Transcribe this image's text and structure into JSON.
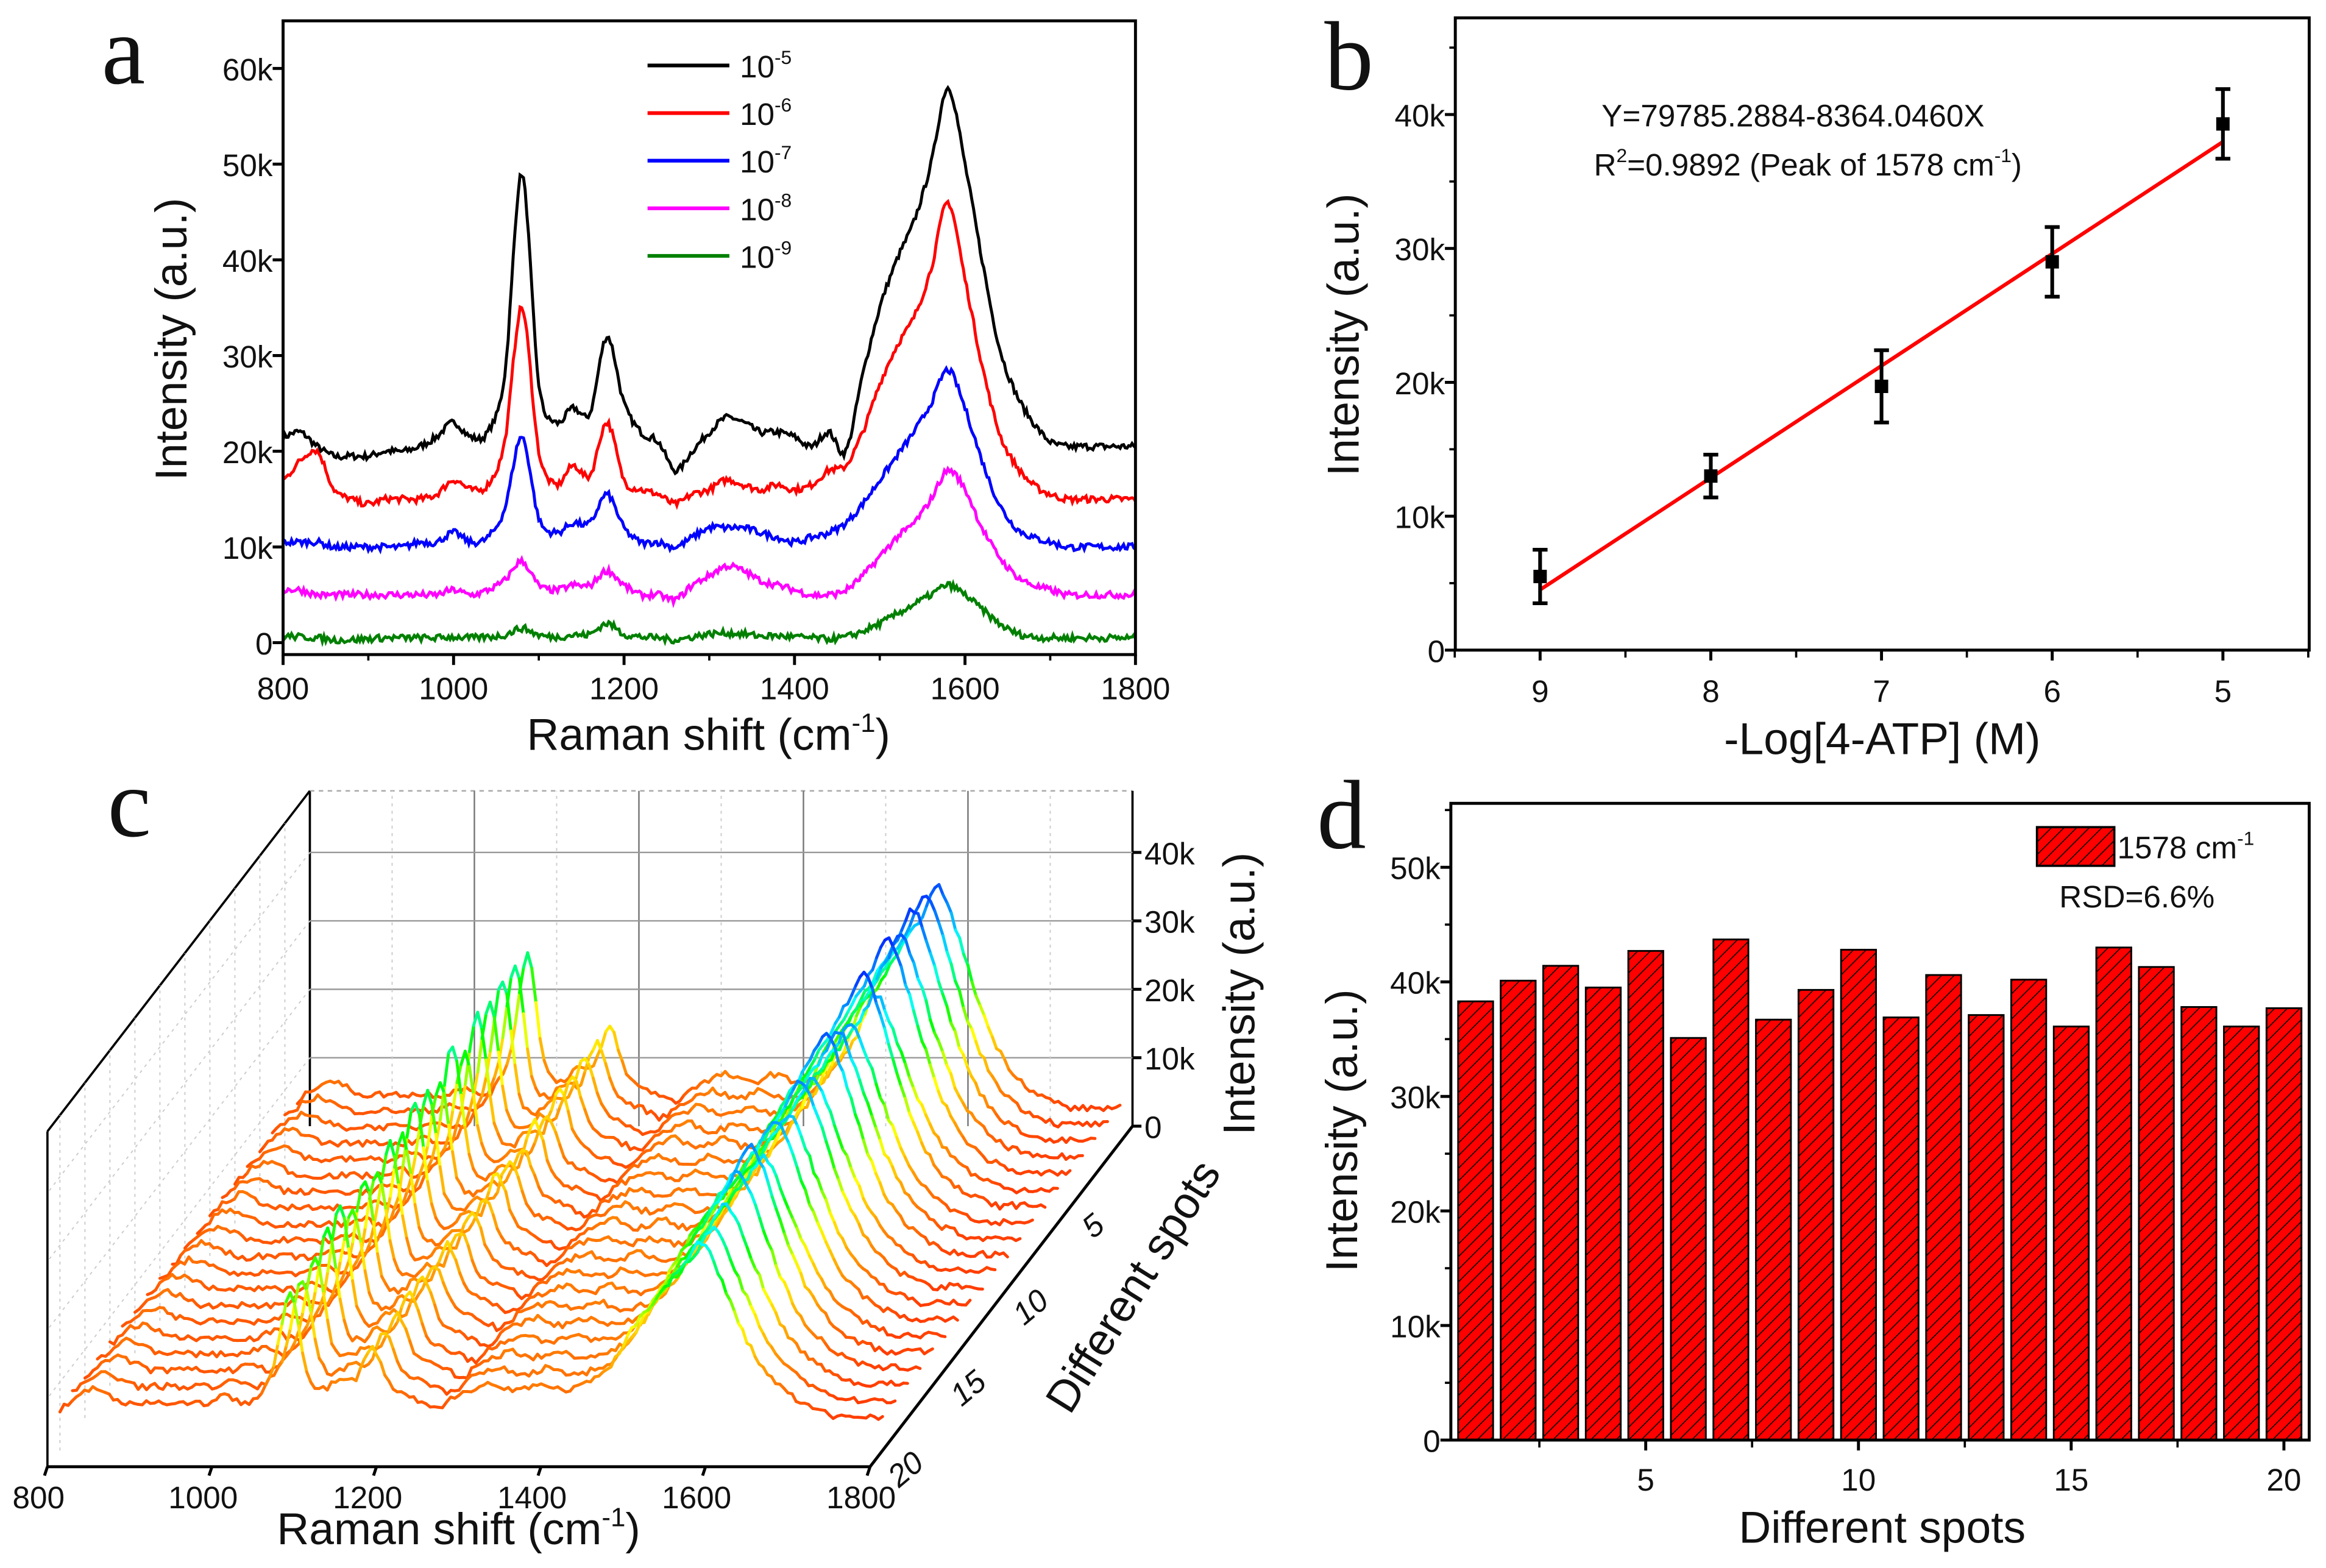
{
  "panels": {
    "a": "a",
    "b": "b",
    "c": "c",
    "d": "d"
  },
  "chart_data": [
    {
      "panel": "a",
      "type": "line",
      "xlabel": "Raman shift (cm",
      "xlabel_sup": "-1",
      "xlabel_end": ")",
      "ylabel": "Intensity (a.u.)",
      "xlim": [
        800,
        1800
      ],
      "ylim": [
        -1000,
        65000
      ],
      "xticks": [
        "800",
        "1000",
        "1200",
        "1400",
        "1600",
        "1800"
      ],
      "yticks": [
        "0",
        "10k",
        "20k",
        "30k",
        "40k",
        "50k",
        "60k"
      ],
      "legend_position": "top-center",
      "x": [
        800,
        820,
        840,
        860,
        880,
        900,
        920,
        940,
        960,
        980,
        1000,
        1020,
        1040,
        1060,
        1080,
        1100,
        1120,
        1140,
        1160,
        1180,
        1200,
        1220,
        1240,
        1260,
        1280,
        1300,
        1320,
        1340,
        1360,
        1380,
        1400,
        1420,
        1440,
        1460,
        1480,
        1500,
        1520,
        1540,
        1560,
        1580,
        1600,
        1620,
        1640,
        1660,
        1680,
        1700,
        1720,
        1740,
        1760,
        1780,
        1800
      ],
      "series": [
        {
          "name_base": "10",
          "name_exp": "-5",
          "color": "#000000",
          "values": [
            21500,
            22000,
            20500,
            19500,
            19500,
            19500,
            20000,
            20000,
            20500,
            21500,
            23000,
            21500,
            22000,
            28000,
            49000,
            27000,
            23000,
            24500,
            24000,
            32000,
            25000,
            22000,
            21000,
            18000,
            20000,
            22000,
            23500,
            23000,
            22000,
            22000,
            21500,
            20500,
            22000,
            20000,
            28000,
            35000,
            40000,
            44000,
            50000,
            58000,
            50000,
            40000,
            31000,
            26000,
            23000,
            21000,
            20500,
            20500,
            20500,
            20500,
            20500
          ]
        },
        {
          "name_base": "10",
          "name_exp": "-6",
          "color": "#ff0000",
          "values": [
            17000,
            19000,
            20000,
            16000,
            15000,
            14500,
            15000,
            15000,
            15000,
            15500,
            17000,
            16000,
            16500,
            21000,
            35000,
            20000,
            16500,
            18500,
            17500,
            23000,
            17000,
            16000,
            15500,
            14500,
            15500,
            16000,
            17000,
            16500,
            16000,
            16500,
            16000,
            16500,
            18000,
            18500,
            22000,
            27000,
            31000,
            34000,
            39000,
            46000,
            38000,
            29000,
            22000,
            18500,
            16500,
            15500,
            15000,
            15000,
            15000,
            15000,
            15000
          ]
        },
        {
          "name_base": "10",
          "name_exp": "-7",
          "color": "#0000ff",
          "values": [
            10500,
            10500,
            10500,
            10000,
            10000,
            10000,
            10000,
            10000,
            10500,
            10500,
            11500,
            10500,
            11000,
            14000,
            21500,
            13000,
            11500,
            12500,
            12500,
            15500,
            12000,
            10500,
            10500,
            10000,
            11000,
            12000,
            12000,
            12000,
            11500,
            11000,
            10500,
            11000,
            11500,
            12500,
            14500,
            17000,
            19500,
            22000,
            25000,
            28500,
            24500,
            19000,
            14500,
            12000,
            11000,
            10500,
            10000,
            10000,
            10000,
            10000,
            10000
          ]
        },
        {
          "name_base": "10",
          "name_exp": "-8",
          "color": "#ff00ff",
          "values": [
            5500,
            5500,
            5000,
            5000,
            5000,
            5000,
            5000,
            5000,
            5000,
            5000,
            5500,
            5000,
            5500,
            6500,
            8500,
            6000,
            5500,
            6000,
            6000,
            7500,
            6000,
            5000,
            5000,
            4500,
            6000,
            7000,
            8000,
            7500,
            6500,
            6000,
            5500,
            5000,
            5000,
            5500,
            7000,
            9000,
            11000,
            12500,
            15000,
            18000,
            16000,
            12000,
            9000,
            7000,
            6000,
            5500,
            5000,
            5000,
            5000,
            5000,
            5000
          ]
        },
        {
          "name_base": "10",
          "name_exp": "-9",
          "color": "#008000",
          "values": [
            700,
            600,
            500,
            300,
            300,
            400,
            500,
            500,
            500,
            500,
            600,
            500,
            600,
            800,
            1500,
            800,
            600,
            800,
            900,
            2000,
            900,
            600,
            500,
            300,
            600,
            900,
            1000,
            900,
            700,
            700,
            600,
            500,
            400,
            600,
            1200,
            2000,
            3000,
            4000,
            5000,
            6000,
            5000,
            3500,
            2000,
            1000,
            600,
            500,
            500,
            500,
            500,
            500,
            500
          ]
        }
      ]
    },
    {
      "panel": "b",
      "type": "scatter",
      "xlabel": "-Log[4-ATP] (M)",
      "ylabel": "Intensity (a.u.)",
      "xlim": [
        9.5,
        4.5
      ],
      "x_reversed": true,
      "ylim": [
        0,
        47000
      ],
      "xticks": [
        "9",
        "8",
        "7",
        "6",
        "5"
      ],
      "yticks": [
        "0",
        "10k",
        "20k",
        "30k",
        "40k"
      ],
      "x": [
        9,
        8,
        7,
        6,
        5
      ],
      "y": [
        5500,
        13000,
        19700,
        29000,
        39300
      ],
      "error": [
        2000,
        1600,
        2700,
        2600,
        2600
      ],
      "marker_color": "#000000",
      "fit": {
        "intercept": 79785.2884,
        "slope": -8364.046,
        "color": "#ff0000"
      },
      "equation": "Y=79785.2884-8364.0460X",
      "r2_prefix": "R",
      "r2_sup": "2",
      "r2_text": "=0.9892 (Peak of 1578 cm",
      "r2_sup2": "-1",
      "r2_end": ")"
    },
    {
      "panel": "c",
      "type": "line",
      "subtype": "3d-waterfall",
      "xlabel": "Raman shift (cm",
      "xlabel_sup": "-1",
      "xlabel_end": ")",
      "ylabel": "Different spots",
      "zlabel": "Intensity (a.u.)",
      "xlim": [
        800,
        1800
      ],
      "zlim": [
        0,
        45000
      ],
      "spots": [
        1,
        20
      ],
      "xticks": [
        "800",
        "1000",
        "1200",
        "1400",
        "1600",
        "1800"
      ],
      "zticks": [
        "0",
        "10k",
        "20k",
        "30k",
        "40k"
      ],
      "spot_ticks": [
        "5",
        "10",
        "15",
        "20"
      ],
      "colormap": [
        "#ff0000",
        "#ff8000",
        "#ffff00",
        "#00ff00",
        "#00ffff",
        "#0000ff"
      ],
      "x": [
        800,
        820,
        840,
        860,
        880,
        900,
        920,
        940,
        960,
        980,
        1000,
        1020,
        1040,
        1060,
        1080,
        1100,
        1120,
        1140,
        1160,
        1180,
        1200,
        1220,
        1240,
        1260,
        1280,
        1300,
        1320,
        1340,
        1360,
        1380,
        1400,
        1420,
        1440,
        1460,
        1480,
        1500,
        1520,
        1540,
        1560,
        1580,
        1600,
        1620,
        1640,
        1660,
        1680,
        1700,
        1720,
        1740,
        1760,
        1780,
        1800
      ],
      "average_spectrum": [
        6000,
        8000,
        9000,
        8000,
        7000,
        7000,
        7000,
        7000,
        7000,
        7000,
        8000,
        7000,
        8000,
        14000,
        28000,
        12000,
        9000,
        11000,
        11000,
        17000,
        10000,
        8000,
        7000,
        6000,
        8000,
        9000,
        10000,
        9000,
        9000,
        10000,
        9000,
        9000,
        10000,
        12000,
        16000,
        22000,
        26000,
        30000,
        34000,
        38000,
        32000,
        24000,
        17000,
        12000,
        9000,
        7000,
        6000,
        5000,
        5000,
        5000,
        5000
      ]
    },
    {
      "panel": "d",
      "type": "bar",
      "xlabel": "Different spots",
      "ylabel": "Intensity (a.u.)",
      "xlim": [
        0.45,
        20.55
      ],
      "ylim": [
        0,
        55000
      ],
      "xticks": [
        "5",
        "10",
        "15",
        "20"
      ],
      "yticks": [
        "0",
        "10k",
        "20k",
        "30k",
        "40k",
        "50k"
      ],
      "categories": [
        1,
        2,
        3,
        4,
        5,
        6,
        7,
        8,
        9,
        10,
        11,
        12,
        13,
        14,
        15,
        16,
        17,
        18,
        19,
        20
      ],
      "values": [
        38300,
        40100,
        41400,
        39500,
        42700,
        35100,
        43700,
        36700,
        39300,
        42800,
        36900,
        40600,
        37100,
        40200,
        36100,
        43000,
        41300,
        37800,
        36100,
        37700
      ],
      "bar_color": "#ff0000",
      "hatch": true,
      "legend_label": "1578 cm",
      "legend_sup": "-1",
      "annotation": "RSD=6.6%",
      "legend_position": "top-right"
    }
  ]
}
